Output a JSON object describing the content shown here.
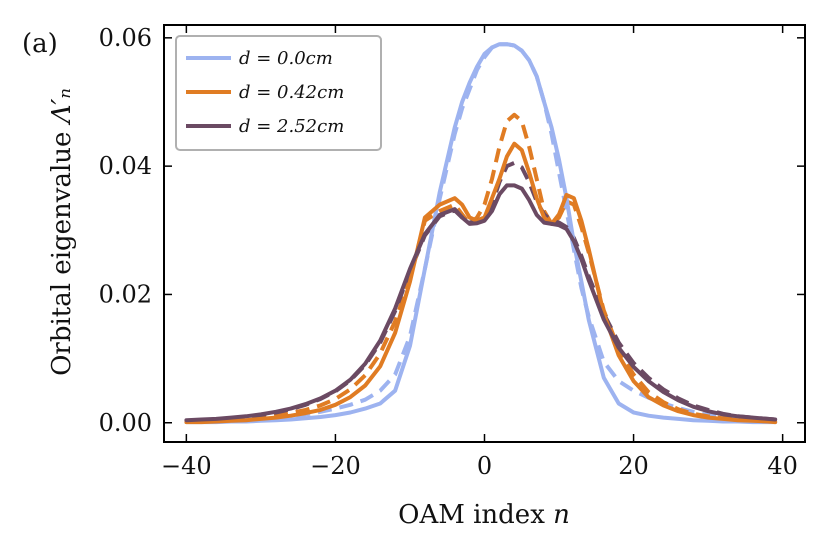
{
  "chart_data": {
    "type": "line",
    "panel_label": "(a)",
    "xlabel": "OAM index n",
    "ylabel": "Orbital eigenvalue Λ′ₙ",
    "xlim": [
      -43,
      43
    ],
    "ylim": [
      -0.003,
      0.062
    ],
    "xticks": [
      -40,
      -20,
      0,
      20,
      40
    ],
    "xtick_labels": [
      "−40",
      "−20",
      "0",
      "20",
      "40"
    ],
    "yticks": [
      0.0,
      0.02,
      0.04,
      0.06
    ],
    "ytick_labels": [
      "0.00",
      "0.02",
      "0.04",
      "0.06"
    ],
    "legend_position": "top-left",
    "x": [
      -40,
      -38,
      -36,
      -34,
      -32,
      -30,
      -28,
      -26,
      -24,
      -22,
      -20,
      -18,
      -16,
      -14,
      -12,
      -10,
      -8,
      -6,
      -4,
      -3,
      -2,
      -1,
      0,
      1,
      2,
      3,
      4,
      5,
      6,
      7,
      8,
      9,
      10,
      11,
      12,
      13,
      14,
      16,
      18,
      20,
      22,
      24,
      26,
      28,
      30,
      32,
      34,
      36,
      38,
      39
    ],
    "series": [
      {
        "name": "d = 0.0cm",
        "label": "d = 0.0cm",
        "color": "#9db3f0",
        "style": "solid",
        "values": [
          0.0001,
          0.0001,
          0.0001,
          0.0002,
          0.0002,
          0.0003,
          0.0004,
          0.0005,
          0.0007,
          0.0009,
          0.0012,
          0.0016,
          0.0022,
          0.003,
          0.005,
          0.012,
          0.024,
          0.036,
          0.046,
          0.05,
          0.053,
          0.0555,
          0.0575,
          0.0585,
          0.059,
          0.059,
          0.0588,
          0.058,
          0.0565,
          0.054,
          0.05,
          0.046,
          0.041,
          0.035,
          0.028,
          0.022,
          0.016,
          0.007,
          0.003,
          0.0016,
          0.0011,
          0.0008,
          0.0006,
          0.0004,
          0.0003,
          0.0002,
          0.0002,
          0.0001,
          0.0001,
          0.0001
        ]
      },
      {
        "name": "d = 0.0cm (dashed)",
        "color": "#9db3f0",
        "style": "dashed",
        "values": [
          0.0002,
          0.0002,
          0.0003,
          0.0004,
          0.0005,
          0.0006,
          0.0008,
          0.001,
          0.0013,
          0.0017,
          0.0022,
          0.0028,
          0.0036,
          0.005,
          0.0075,
          0.0135,
          0.024,
          0.035,
          0.045,
          0.049,
          0.052,
          0.055,
          0.057,
          0.0585,
          0.059,
          0.059,
          0.0588,
          0.058,
          0.0565,
          0.054,
          0.05,
          0.045,
          0.039,
          0.033,
          0.027,
          0.021,
          0.0165,
          0.0095,
          0.0065,
          0.005,
          0.0039,
          0.003,
          0.0023,
          0.0017,
          0.0012,
          0.0009,
          0.0006,
          0.0004,
          0.0003,
          0.0002
        ]
      },
      {
        "name": "d = 0.42cm",
        "label": "d = 0.42cm",
        "color": "#e07c23",
        "style": "solid",
        "values": [
          0.0001,
          0.0001,
          0.0002,
          0.0003,
          0.0004,
          0.0006,
          0.0008,
          0.0011,
          0.0015,
          0.002,
          0.0028,
          0.004,
          0.0058,
          0.0088,
          0.014,
          0.022,
          0.032,
          0.034,
          0.035,
          0.034,
          0.032,
          0.0315,
          0.032,
          0.035,
          0.038,
          0.0415,
          0.0435,
          0.0425,
          0.039,
          0.035,
          0.032,
          0.031,
          0.0325,
          0.0355,
          0.035,
          0.0315,
          0.027,
          0.017,
          0.0105,
          0.0065,
          0.004,
          0.0027,
          0.0018,
          0.0012,
          0.0008,
          0.0006,
          0.0004,
          0.0003,
          0.0002,
          0.0001
        ]
      },
      {
        "name": "d = 0.42cm (dashed)",
        "color": "#e07c23",
        "style": "dashed",
        "values": [
          0.0002,
          0.0002,
          0.0003,
          0.0004,
          0.0006,
          0.0008,
          0.0011,
          0.0015,
          0.002,
          0.0027,
          0.0037,
          0.0052,
          0.0074,
          0.0108,
          0.0158,
          0.0225,
          0.0315,
          0.033,
          0.034,
          0.0325,
          0.031,
          0.032,
          0.034,
          0.038,
          0.043,
          0.047,
          0.048,
          0.047,
          0.043,
          0.038,
          0.033,
          0.031,
          0.032,
          0.0345,
          0.034,
          0.0305,
          0.0265,
          0.0175,
          0.0115,
          0.0075,
          0.0048,
          0.0032,
          0.0021,
          0.0014,
          0.001,
          0.0007,
          0.0005,
          0.0003,
          0.0002,
          0.0002
        ]
      },
      {
        "name": "d = 2.52cm",
        "label": "d = 2.52cm",
        "color": "#6b4a63",
        "style": "solid",
        "values": [
          0.0004,
          0.0005,
          0.0006,
          0.0008,
          0.001,
          0.0013,
          0.0017,
          0.0022,
          0.0029,
          0.0038,
          0.005,
          0.0067,
          0.0092,
          0.0128,
          0.0178,
          0.024,
          0.0294,
          0.0324,
          0.0333,
          0.032,
          0.031,
          0.0311,
          0.0315,
          0.033,
          0.0356,
          0.037,
          0.037,
          0.0365,
          0.0347,
          0.0324,
          0.0312,
          0.031,
          0.0308,
          0.0302,
          0.0283,
          0.0255,
          0.0222,
          0.0161,
          0.0117,
          0.0087,
          0.0065,
          0.0048,
          0.0035,
          0.0025,
          0.0018,
          0.0013,
          0.001,
          0.0008,
          0.0006,
          0.0005
        ]
      },
      {
        "name": "d = 2.52cm (dashed)",
        "color": "#6b4a63",
        "style": "dashed",
        "values": [
          0.0003,
          0.0004,
          0.0005,
          0.0007,
          0.0009,
          0.0012,
          0.0016,
          0.0021,
          0.0028,
          0.0037,
          0.0049,
          0.0066,
          0.009,
          0.0125,
          0.0174,
          0.0236,
          0.0292,
          0.0322,
          0.0331,
          0.032,
          0.0312,
          0.0315,
          0.032,
          0.034,
          0.0375,
          0.04,
          0.0405,
          0.0398,
          0.0375,
          0.0345,
          0.0325,
          0.0315,
          0.0312,
          0.0305,
          0.0288,
          0.026,
          0.0228,
          0.017,
          0.0125,
          0.0093,
          0.007,
          0.0052,
          0.0038,
          0.0027,
          0.002,
          0.0014,
          0.001,
          0.0008,
          0.0006,
          0.0005
        ]
      }
    ]
  }
}
